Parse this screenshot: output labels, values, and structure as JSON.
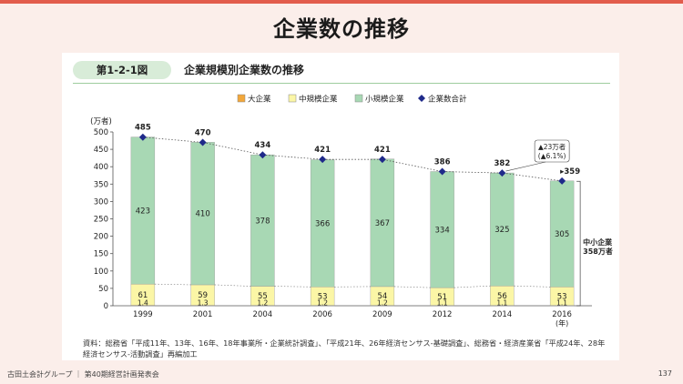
{
  "page": {
    "title": "企業数の推移",
    "footer": "古田土会計グループ ｜ 第40期経営計画発表会",
    "page_number": "137"
  },
  "figure": {
    "label": "第1-2-1図",
    "title": "企業規模別企業数の推移",
    "source": "資料：総務省「平成11年、13年、16年、18年事業所・企業統計調査」、「平成21年、26年経済センサス‐基礎調査」、総務省・経済産業省「平成24年、28年経済センサス‐活動調査」再編加工"
  },
  "colors": {
    "large": "#f2a73a",
    "medium": "#fbf6a6",
    "small": "#a8d8b4",
    "total": "#1f2a8a",
    "accent": "#e25c4c"
  },
  "chart_data": {
    "type": "bar",
    "stacked": true,
    "categories": [
      "1999",
      "2001",
      "2004",
      "2006",
      "2009",
      "2012",
      "2014",
      "2016"
    ],
    "x_unit": "(年)",
    "ylabel": "(万者)",
    "ylim": [
      0,
      500
    ],
    "yticks": [
      0,
      50,
      100,
      150,
      200,
      250,
      300,
      350,
      400,
      450,
      500
    ],
    "legend_position": "top",
    "series": [
      {
        "name": "大企業",
        "color": "#f2a73a",
        "labels": [
          "1.4",
          "1.3",
          "1.2",
          "1.2",
          "1.2",
          "1.1",
          "1.1",
          "1.1"
        ],
        "values": [
          1.4,
          1.3,
          1.2,
          1.2,
          1.2,
          1.1,
          1.1,
          1.1
        ]
      },
      {
        "name": "中規模企業",
        "color": "#fbf6a6",
        "values": [
          61,
          59,
          55,
          53,
          54,
          51,
          56,
          53
        ]
      },
      {
        "name": "小規模企業",
        "color": "#a8d8b4",
        "values": [
          423,
          410,
          378,
          366,
          367,
          334,
          325,
          305
        ]
      },
      {
        "name": "企業数合計",
        "type": "line",
        "color": "#1f2a8a",
        "values": [
          485,
          470,
          434,
          421,
          421,
          386,
          382,
          359
        ]
      }
    ],
    "annotations": [
      {
        "text_lines": [
          "▲23万者",
          "(▲6.1%)"
        ],
        "from": "2014",
        "to": "2016"
      },
      {
        "text_lines": [
          "中小企業",
          "358万者"
        ],
        "target": "2016"
      }
    ]
  }
}
